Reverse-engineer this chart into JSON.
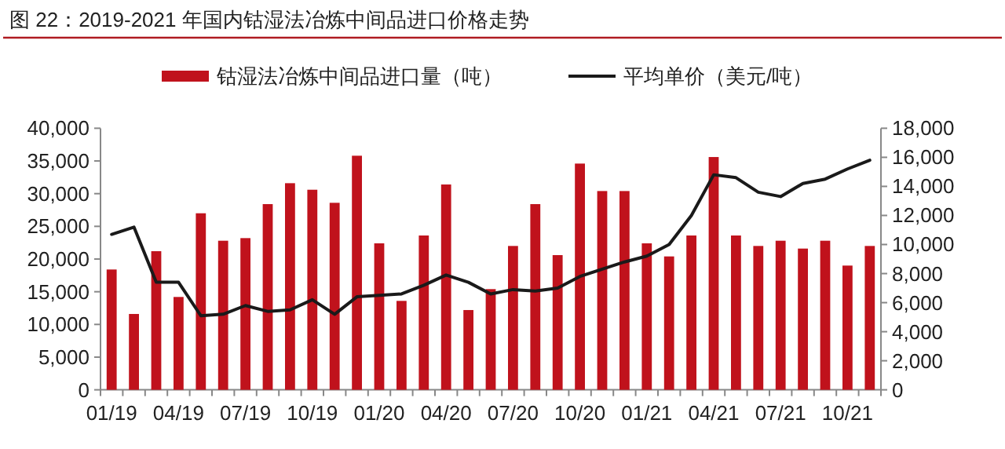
{
  "chart_data": {
    "type": "bar",
    "title": "图 22：2019-2021 年国内钴湿法冶炼中间品进口价格走势",
    "categories": [
      "01/19",
      null,
      null,
      "04/19",
      null,
      null,
      "07/19",
      null,
      null,
      "10/19",
      null,
      null,
      "01/20",
      null,
      null,
      "04/20",
      null,
      null,
      "07/20",
      null,
      null,
      "10/20",
      null,
      null,
      "01/21",
      null,
      null,
      "04/21",
      null,
      null,
      "07/21",
      null,
      null,
      "10/21",
      null
    ],
    "series": [
      {
        "name": "钴湿法冶炼中间品进口量（吨）",
        "color": "#c0121c",
        "values": [
          18400,
          11600,
          21200,
          14200,
          27000,
          22800,
          23200,
          28400,
          31600,
          30600,
          28600,
          35800,
          22400,
          13600,
          23600,
          31400,
          12200,
          15400,
          22000,
          28400,
          20600,
          34600,
          30400,
          30400,
          22400,
          20400,
          23600,
          35600,
          23600,
          22000,
          22800,
          21600,
          22800,
          19000,
          22000
        ]
      },
      {
        "name": "平均单价（美元/吨）",
        "type": "line",
        "axis": "y2",
        "color": "#1a1a1a",
        "values": [
          10700,
          11200,
          7400,
          7400,
          5100,
          5200,
          5800,
          5400,
          5500,
          6200,
          5200,
          6400,
          6500,
          6600,
          7200,
          7900,
          7400,
          6600,
          6900,
          6800,
          7000,
          7800,
          8300,
          8800,
          9200,
          10000,
          12000,
          14800,
          14600,
          13600,
          13300,
          14200,
          14500,
          15200,
          15800
        ]
      }
    ],
    "ylim": [
      0,
      40000
    ],
    "yticks": [
      0,
      {
        "value": 5000,
        "label": "5,000"
      },
      {
        "value": 10000,
        "label": "10,000"
      },
      {
        "value": 15000,
        "label": "15,000"
      },
      {
        "value": 20000,
        "label": "20,000"
      },
      {
        "value": 25000,
        "label": "25,000"
      },
      {
        "value": 30000,
        "label": "30,000"
      },
      {
        "value": 35000,
        "label": "35,000"
      },
      {
        "value": 40000,
        "label": "40,000"
      }
    ],
    "y2lim": [
      0,
      18000
    ],
    "y2ticks": [
      0,
      {
        "value": 2000,
        "label": "2,000"
      },
      {
        "value": 4000,
        "label": "4,000"
      },
      {
        "value": 6000,
        "label": "6,000"
      },
      {
        "value": 8000,
        "label": "8,000"
      },
      {
        "value": 10000,
        "label": "10,000"
      },
      {
        "value": 12000,
        "label": "12,000"
      },
      {
        "value": 14000,
        "label": "14,000"
      },
      {
        "value": 16000,
        "label": "16,000"
      },
      {
        "value": 18000,
        "label": "18,000"
      }
    ],
    "legend": "top"
  }
}
